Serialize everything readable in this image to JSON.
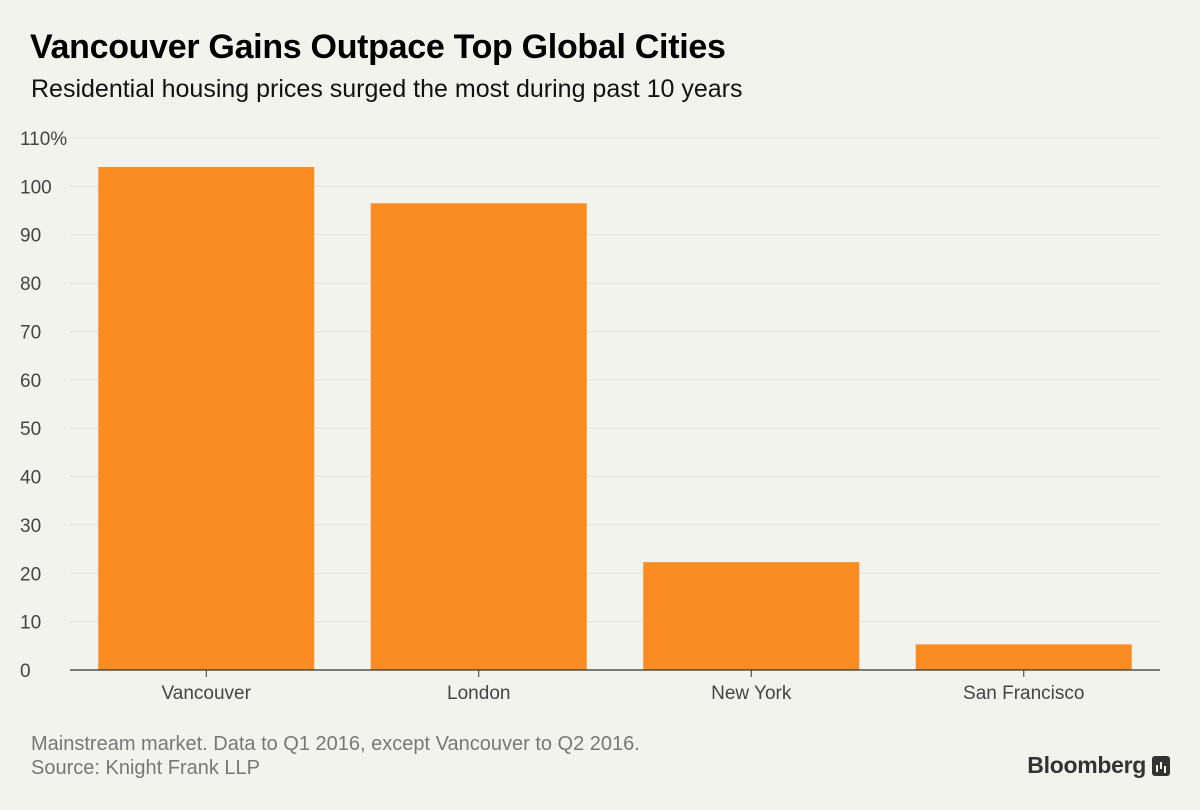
{
  "chart_data": {
    "type": "bar",
    "title": "Vancouver Gains Outpace Top Global Cities",
    "subtitle": "Residential housing prices surged the most during past 10 years",
    "categories": [
      "Vancouver",
      "London",
      "New York",
      "San Francisco"
    ],
    "values": [
      104,
      96.5,
      22.3,
      5.3
    ],
    "ylim": [
      0,
      110
    ],
    "yticks": [
      {
        "value": 110,
        "label": "110%"
      },
      {
        "value": 100,
        "label": "100"
      },
      {
        "value": 90,
        "label": "90"
      },
      {
        "value": 80,
        "label": "80"
      },
      {
        "value": 70,
        "label": "70"
      },
      {
        "value": 60,
        "label": "60"
      },
      {
        "value": 50,
        "label": "50"
      },
      {
        "value": 40,
        "label": "40"
      },
      {
        "value": 30,
        "label": "30"
      },
      {
        "value": 20,
        "label": "20"
      },
      {
        "value": 10,
        "label": "10"
      },
      {
        "value": 0,
        "label": "0"
      }
    ],
    "grid": true,
    "bar_color": "#fb8c22",
    "grid_color": "#e2e2dc",
    "axis_color": "#333333"
  },
  "footnote": "Mainstream market. Data to Q1 2016, except Vancouver to Q2 2016.",
  "source": "Source: Knight Frank LLP",
  "brand": {
    "name": "Bloomberg",
    "icon": "bloomberg-chart-icon"
  }
}
